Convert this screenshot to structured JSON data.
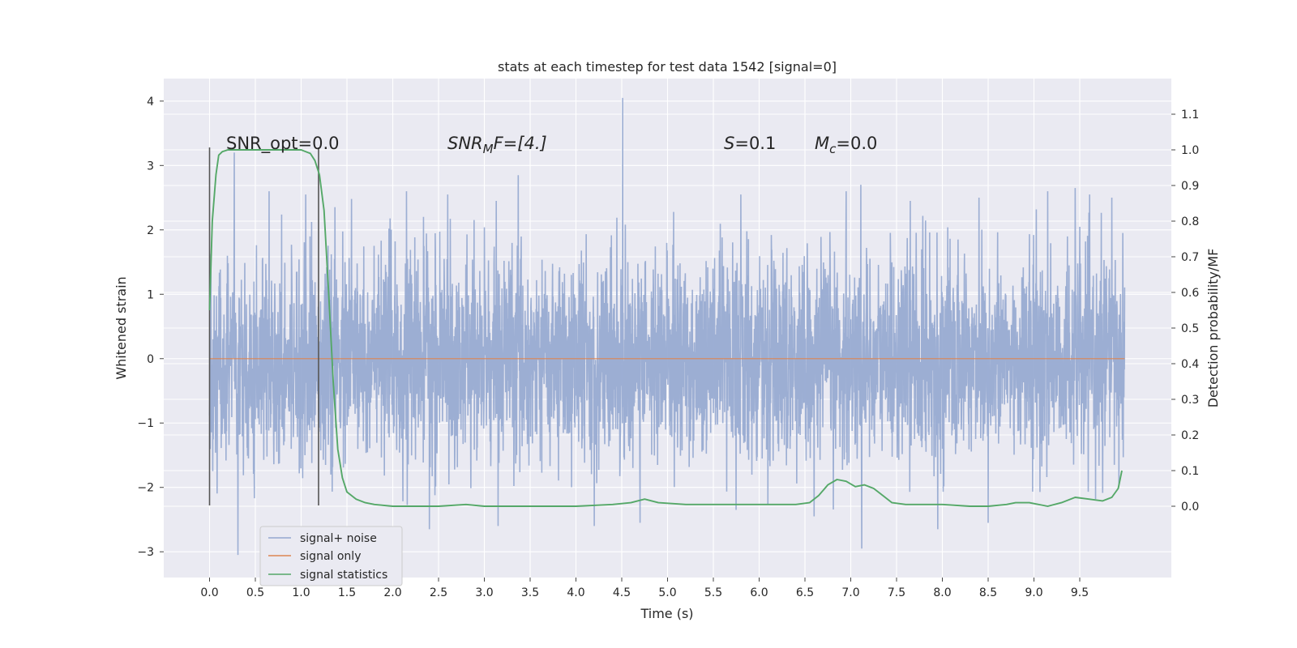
{
  "chart_data": {
    "type": "line",
    "title": "stats at each timestep for test data 1542 [signal=0]",
    "xlabel": "Time (s)",
    "ylabel": "Whitened strain",
    "y2label": "Detection probability/MF",
    "xlim": [
      -0.5,
      10.5
    ],
    "ylim": [
      -3.4,
      4.35
    ],
    "y2lim": [
      -0.2,
      1.2
    ],
    "xticks": [
      "0.0",
      "0.5",
      "1.0",
      "1.5",
      "2.0",
      "2.5",
      "3.0",
      "3.5",
      "4.0",
      "4.5",
      "5.0",
      "5.5",
      "6.0",
      "6.5",
      "7.0",
      "7.5",
      "8.0",
      "8.5",
      "9.0",
      "9.5"
    ],
    "yticks": [
      "−3",
      "−2",
      "−1",
      "0",
      "1",
      "2",
      "3",
      "4"
    ],
    "y2ticks": [
      "0.0",
      "0.1",
      "0.2",
      "0.3",
      "0.4",
      "0.5",
      "0.6",
      "0.7",
      "0.8",
      "0.9",
      "1.0",
      "1.1"
    ],
    "grid": true,
    "legend_placement": "lower-left",
    "annotations": {
      "snr_opt": "SNR_opt=0.0",
      "snr_mf_base": "SNR",
      "snr_mf_sub": "M",
      "snr_mf_rest": "F=[4.]",
      "s_var": "S",
      "s_val": "=0.1",
      "mc_var": "M",
      "mc_sub": "c",
      "mc_val": "=0.0"
    },
    "window_markers": {
      "x": [
        0.0,
        1.19
      ],
      "y_range": [
        -2.28,
        3.28
      ]
    },
    "series": [
      {
        "name": "signal+ noise",
        "color": "#95a8d0",
        "x_range": [
          0.0,
          9.99
        ],
        "noise_envelope": {
          "typical_abs": 1.0,
          "min": -3.05,
          "max": 4.05
        },
        "peaks": [
          {
            "x": 0.27,
            "y": 3.2
          },
          {
            "x": 0.31,
            "y": -3.05
          },
          {
            "x": 0.65,
            "y": 2.6
          },
          {
            "x": 1.05,
            "y": 2.55
          },
          {
            "x": 1.55,
            "y": 2.48
          },
          {
            "x": 2.15,
            "y": 2.6
          },
          {
            "x": 2.4,
            "y": -2.65
          },
          {
            "x": 2.6,
            "y": 2.55
          },
          {
            "x": 3.13,
            "y": 2.45
          },
          {
            "x": 3.15,
            "y": -2.6
          },
          {
            "x": 3.37,
            "y": 2.85
          },
          {
            "x": 4.2,
            "y": -2.6
          },
          {
            "x": 4.51,
            "y": 4.05
          },
          {
            "x": 4.7,
            "y": -2.55
          },
          {
            "x": 5.8,
            "y": 2.55
          },
          {
            "x": 6.6,
            "y": -2.45
          },
          {
            "x": 6.95,
            "y": 2.6
          },
          {
            "x": 7.11,
            "y": 2.7
          },
          {
            "x": 7.12,
            "y": -2.95
          },
          {
            "x": 7.65,
            "y": 2.45
          },
          {
            "x": 7.95,
            "y": -2.65
          },
          {
            "x": 8.4,
            "y": 2.5
          },
          {
            "x": 8.5,
            "y": -2.55
          },
          {
            "x": 9.15,
            "y": 2.6
          },
          {
            "x": 9.45,
            "y": 2.65
          },
          {
            "x": 9.85,
            "y": 2.5
          }
        ]
      },
      {
        "name": "signal only",
        "color": "#dd8452",
        "x": [
          0.0,
          9.99
        ],
        "y": [
          0.0,
          0.0
        ]
      },
      {
        "name": "signal statistics",
        "color": "#55a868",
        "axis": "right",
        "x": [
          0.0,
          0.03,
          0.07,
          0.1,
          0.14,
          0.2,
          0.3,
          0.5,
          0.7,
          0.9,
          1.0,
          1.1,
          1.15,
          1.2,
          1.25,
          1.3,
          1.35,
          1.4,
          1.45,
          1.5,
          1.6,
          1.7,
          1.8,
          2.0,
          2.5,
          2.8,
          3.0,
          3.5,
          4.0,
          4.4,
          4.6,
          4.75,
          4.9,
          5.2,
          5.5,
          6.0,
          6.4,
          6.55,
          6.65,
          6.75,
          6.85,
          6.95,
          7.05,
          7.15,
          7.25,
          7.35,
          7.45,
          7.6,
          7.8,
          8.0,
          8.3,
          8.5,
          8.7,
          8.8,
          8.95,
          9.15,
          9.3,
          9.45,
          9.6,
          9.75,
          9.85,
          9.92,
          9.96
        ],
        "y": [
          0.55,
          0.8,
          0.93,
          0.985,
          0.995,
          1.0,
          1.0,
          1.0,
          1.0,
          1.0,
          1.0,
          0.99,
          0.97,
          0.93,
          0.83,
          0.6,
          0.35,
          0.16,
          0.08,
          0.04,
          0.02,
          0.01,
          0.005,
          0.0,
          0.0,
          0.005,
          0.0,
          0.0,
          0.0,
          0.005,
          0.01,
          0.02,
          0.01,
          0.005,
          0.005,
          0.005,
          0.005,
          0.01,
          0.03,
          0.06,
          0.075,
          0.07,
          0.055,
          0.06,
          0.05,
          0.03,
          0.01,
          0.005,
          0.005,
          0.005,
          0.0,
          0.0,
          0.005,
          0.01,
          0.01,
          0.0,
          0.01,
          0.025,
          0.02,
          0.015,
          0.025,
          0.05,
          0.1
        ]
      }
    ]
  }
}
